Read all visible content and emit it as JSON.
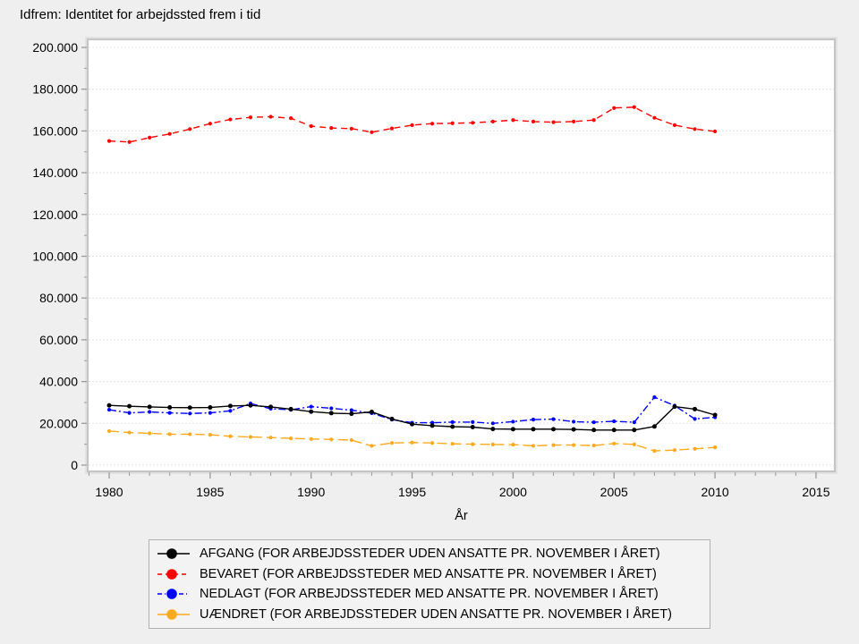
{
  "title": "Idfrem: Identitet for arbejdssted frem i tid",
  "chart_data": {
    "type": "line",
    "title": "Idfrem: Identitet for arbejdssted frem i tid",
    "xlabel": "År",
    "ylabel": "",
    "ylim": [
      0,
      200000
    ],
    "ytick_step": 20000,
    "ytick_labels": [
      "0",
      "20.000",
      "40.000",
      "60.000",
      "80.000",
      "100.000",
      "120.000",
      "140.000",
      "160.000",
      "180.000",
      "200.000"
    ],
    "xticks": [
      1980,
      1985,
      1990,
      1995,
      2000,
      2005,
      2010,
      2015
    ],
    "xtick_labels": [
      "1980",
      "1985",
      "1990",
      "1995",
      "2000",
      "2005",
      "2010",
      "2015"
    ],
    "grid": "horizontal-major",
    "legend_position": "bottom",
    "x": [
      1980,
      1981,
      1982,
      1983,
      1984,
      1985,
      1986,
      1987,
      1988,
      1989,
      1990,
      1991,
      1992,
      1993,
      1994,
      1995,
      1996,
      1997,
      1998,
      1999,
      2000,
      2001,
      2002,
      2003,
      2004,
      2005,
      2006,
      2007,
      2008,
      2009,
      2010
    ],
    "series": [
      {
        "label": "AFGANG (FOR ARBEJDSSTEDER UDEN ANSATTE PR. NOVEMBER I ÅRET)",
        "color": "#000000",
        "line_style": "solid",
        "marker": "filled-circle",
        "values": [
          28600,
          28200,
          27900,
          27600,
          27500,
          27600,
          28300,
          28600,
          27900,
          26800,
          25600,
          24900,
          24600,
          25500,
          22100,
          19600,
          18900,
          18400,
          18200,
          17300,
          17200,
          17200,
          17200,
          17100,
          16800,
          16800,
          16800,
          18500,
          28000,
          26800,
          24000
        ]
      },
      {
        "label": "BEVARET (FOR ARBEJDSSTEDER MED ANSATTE PR. NOVEMBER I ÅRET)",
        "color": "#ff0000",
        "line_style": "dashed",
        "marker": "filled-circle",
        "values": [
          155200,
          154700,
          156800,
          158600,
          160900,
          163500,
          165500,
          166500,
          166800,
          166100,
          162300,
          161400,
          161100,
          159400,
          161200,
          162800,
          163500,
          163700,
          163900,
          164500,
          165200,
          164500,
          164200,
          164500,
          165200,
          171000,
          171400,
          166300,
          162800,
          160900,
          159800
        ]
      },
      {
        "label": "NEDLAGT (FOR ARBEJDSSTEDER MED ANSATTE PR. NOVEMBER I ÅRET)",
        "color": "#0000ff",
        "line_style": "dash-dot",
        "marker": "filled-circle",
        "values": [
          26500,
          25000,
          25500,
          25000,
          24700,
          25000,
          26000,
          29500,
          27000,
          26500,
          28000,
          27200,
          26300,
          24900,
          21800,
          20300,
          20300,
          20600,
          20600,
          20000,
          20800,
          21800,
          22000,
          20800,
          20500,
          21000,
          20500,
          32500,
          28500,
          22100,
          22900
        ]
      },
      {
        "label": "UÆNDRET (FOR ARBEJDSSTEDER UDEN ANSATTE PR. NOVEMBER I ÅRET)",
        "color": "#ffa91e",
        "line_style": "long-dash",
        "marker": "filled-circle",
        "values": [
          16300,
          15600,
          15200,
          14800,
          14800,
          14500,
          13800,
          13500,
          13200,
          12800,
          12500,
          12300,
          12000,
          9200,
          10600,
          10800,
          10600,
          10200,
          10000,
          9900,
          9800,
          9200,
          9600,
          9600,
          9400,
          10300,
          9900,
          6800,
          7200,
          7800,
          8500
        ]
      }
    ]
  }
}
